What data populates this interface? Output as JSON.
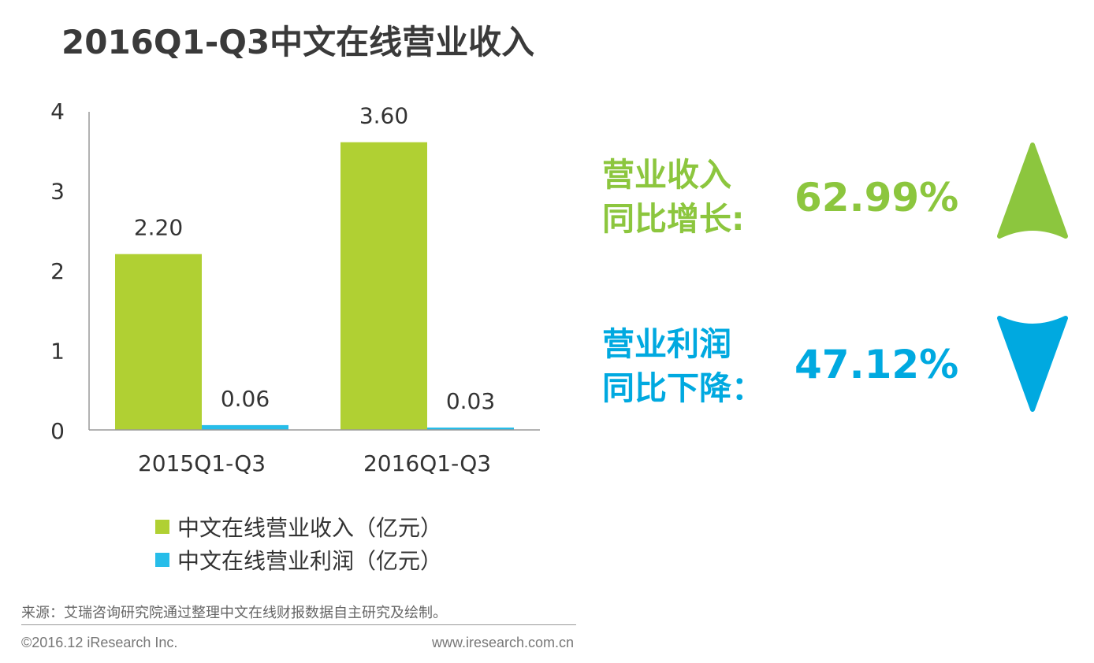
{
  "page": {
    "title": "2016Q1-Q3中文在线营业收入"
  },
  "chart_data": {
    "type": "bar",
    "categories": [
      "2015Q1-Q3",
      "2016Q1-Q3"
    ],
    "series": [
      {
        "name": "中文在线营业收入（亿元）",
        "values": [
          2.2,
          3.6
        ],
        "labels": [
          "2.20",
          "3.60"
        ],
        "color": "#b0d033"
      },
      {
        "name": "中文在线营业利润（亿元）",
        "values": [
          0.06,
          0.03
        ],
        "labels": [
          "0.06",
          "0.03"
        ],
        "color": "#27bde9"
      }
    ],
    "ylim": [
      0,
      4
    ],
    "yticks": [
      0,
      1,
      2,
      3,
      4
    ],
    "ytick_labels": [
      "0",
      "1",
      "2",
      "3",
      "4"
    ],
    "grid": false,
    "legend_position": "bottom",
    "title": "",
    "xlabel": "",
    "ylabel": ""
  },
  "legend": {
    "items": [
      {
        "label": "中文在线营业收入（亿元）",
        "color": "#b0d033"
      },
      {
        "label": "中文在线营业利润（亿元）",
        "color": "#27bde9"
      }
    ]
  },
  "stats": {
    "revenue": {
      "label_line1": "营业收入",
      "label_line2": "同比增长:",
      "value": "62.99%",
      "color": "#8cc63e",
      "icon": "up-arrow-icon"
    },
    "profit": {
      "label_line1": "营业利润",
      "label_line2": "同比下降：",
      "value": "47.12%",
      "color": "#00a9e0",
      "icon": "down-arrow-icon"
    }
  },
  "footer": {
    "source": "来源：艾瑞咨询研究院通过整理中文在线财报数据自主研究及绘制。",
    "copyright": "©2016.12 iResearch Inc.",
    "website": "www.iresearch.com.cn"
  },
  "colors": {
    "title": "#3a3a3a",
    "text": "#333333",
    "axis": "#999999"
  }
}
